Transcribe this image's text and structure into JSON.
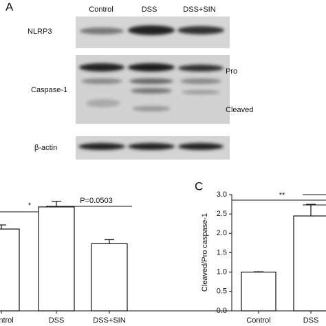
{
  "blot": {
    "panel": "A",
    "lanes": [
      "Control",
      "DSS",
      "DSS+SIN"
    ],
    "rows": [
      "NLRP3",
      "Caspase-1",
      "β-actin"
    ],
    "forms": [
      "Pro",
      "Cleaved"
    ]
  },
  "chart_data": [
    {
      "type": "bar",
      "categories": [
        "Control",
        "DSS",
        "DSS+SIN"
      ],
      "values": [
        1.0,
        1.27,
        0.82
      ],
      "errors": [
        0.05,
        0.07,
        0.05
      ],
      "color": "#ffffff",
      "annotations": [
        "*",
        "P=0.0503"
      ]
    },
    {
      "type": "bar",
      "panel": "C",
      "ylabel": "Cleaved/Pro caspase-1",
      "categories": [
        "Control",
        "DSS"
      ],
      "values": [
        1.0,
        2.45
      ],
      "errors": [
        0.01,
        0.3
      ],
      "color": "#ffffff",
      "ylim": [
        0,
        3
      ],
      "yticks": [
        {
          "value": 0,
          "label": "0.0"
        },
        {
          "value": 0.5,
          "label": "0.5"
        },
        {
          "value": 1,
          "label": "1.0"
        },
        {
          "value": 1.5,
          "label": "1.5"
        },
        {
          "value": 2,
          "label": "2.0"
        },
        {
          "value": 2.5,
          "label": "2.5"
        },
        {
          "value": 3,
          "label": "3.0"
        }
      ],
      "annotations": [
        "**"
      ]
    }
  ]
}
